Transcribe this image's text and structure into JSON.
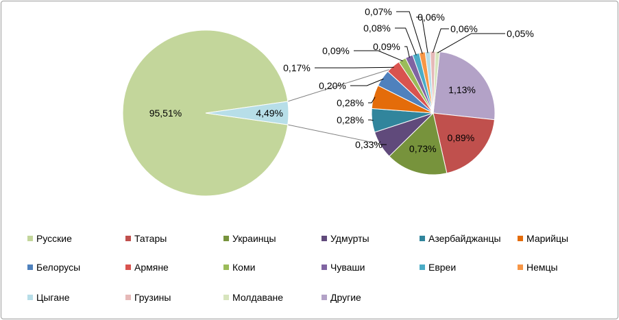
{
  "chart_data": {
    "type": "pie",
    "subtype": "pie-of-pie",
    "main_pie": {
      "slices": [
        {
          "label": "95,51%",
          "value": 95.51,
          "color": "#c3d69b"
        },
        {
          "label": "4,49%",
          "value": 4.49,
          "color": "#b7dee8"
        }
      ]
    },
    "secondary_pie": {
      "categories": [
        "Другие",
        "Татары",
        "Украинцы",
        "Удмурты",
        "Азербайджанцы",
        "Марийцы",
        "Белорусы",
        "Армяне",
        "Коми",
        "Чуваши",
        "Евреи",
        "Немцы",
        "Цыгане",
        "Грузины",
        "Молдаване"
      ],
      "values": [
        1.13,
        0.89,
        0.73,
        0.33,
        0.28,
        0.28,
        0.2,
        0.17,
        0.09,
        0.09,
        0.08,
        0.07,
        0.06,
        0.06,
        0.05
      ],
      "labels": [
        "1,13%",
        "0,89%",
        "0,73%",
        "0,33%",
        "0,28%",
        "0,28%",
        "0,20%",
        "0,17%",
        "0,09%",
        "0,09%",
        "0,08%",
        "0,07%",
        "0,06%",
        "0,06%",
        "0,05%"
      ],
      "colors": [
        "#b3a2c7",
        "#c0504d",
        "#77933c",
        "#604a7b",
        "#31859c",
        "#e46c0a",
        "#4f81bd",
        "#d9534f",
        "#9bbb59",
        "#8064a2",
        "#4bacc6",
        "#f79646",
        "#b7dee8",
        "#e6b9b8",
        "#d7e4bd"
      ]
    },
    "legend": {
      "position": "bottom",
      "entries": [
        {
          "name": "Русские",
          "color": "#c3d69b"
        },
        {
          "name": "Татары",
          "color": "#c0504d"
        },
        {
          "name": "Украинцы",
          "color": "#77933c"
        },
        {
          "name": "Удмурты",
          "color": "#604a7b"
        },
        {
          "name": "Азербайджанцы",
          "color": "#31859c"
        },
        {
          "name": "Марийцы",
          "color": "#e46c0a"
        },
        {
          "name": "Белорусы",
          "color": "#4f81bd"
        },
        {
          "name": "Армяне",
          "color": "#d9534f"
        },
        {
          "name": "Коми",
          "color": "#9bbb59"
        },
        {
          "name": "Чуваши",
          "color": "#8064a2"
        },
        {
          "name": "Евреи",
          "color": "#4bacc6"
        },
        {
          "name": "Немцы",
          "color": "#f79646"
        },
        {
          "name": "Цыгане",
          "color": "#b7dee8"
        },
        {
          "name": "Грузины",
          "color": "#e6b9b8"
        },
        {
          "name": "Молдаване",
          "color": "#d7e4bd"
        },
        {
          "name": "Другие",
          "color": "#b3a2c7"
        }
      ]
    }
  }
}
